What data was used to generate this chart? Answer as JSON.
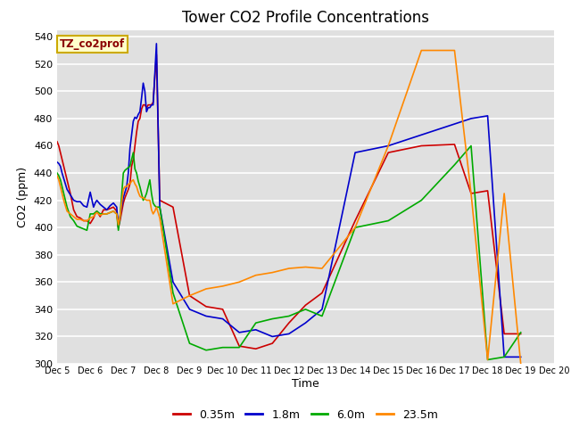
{
  "title": "Tower CO2 Profile Concentrations",
  "xlabel": "Time",
  "ylabel": "CO2 (ppm)",
  "ylim": [
    300,
    545
  ],
  "yticks": [
    300,
    320,
    340,
    360,
    380,
    400,
    420,
    440,
    460,
    480,
    500,
    520,
    540
  ],
  "label_tag": "TZ_co2prof",
  "bg_color": "#e0e0e0",
  "series": {
    "0.35m": {
      "color": "#cc0000",
      "x": [
        5.0,
        5.05,
        5.1,
        5.15,
        5.2,
        5.25,
        5.3,
        5.4,
        5.5,
        5.6,
        5.7,
        5.8,
        5.9,
        6.0,
        6.1,
        6.15,
        6.2,
        6.3,
        6.4,
        6.5,
        6.6,
        6.7,
        6.8,
        6.85,
        6.9,
        7.0,
        7.05,
        7.1,
        7.15,
        7.2,
        7.25,
        7.3,
        7.35,
        7.4,
        7.45,
        7.5,
        7.55,
        7.6,
        7.65,
        7.7,
        7.75,
        7.8,
        7.85,
        7.9,
        7.95,
        8.0,
        8.1,
        8.5,
        9.0,
        9.5,
        10.0,
        10.5,
        11.0,
        11.5,
        12.0,
        12.5,
        13.0,
        14.0,
        15.0,
        16.0,
        17.0,
        17.5,
        18.0,
        18.5,
        19.0
      ],
      "y": [
        463,
        460,
        455,
        450,
        445,
        440,
        435,
        425,
        413,
        408,
        407,
        405,
        405,
        403,
        407,
        410,
        412,
        408,
        413,
        413,
        414,
        415,
        412,
        400,
        405,
        418,
        422,
        425,
        428,
        432,
        445,
        450,
        460,
        470,
        478,
        480,
        487,
        490,
        490,
        488,
        490,
        490,
        490,
        492,
        510,
        527,
        420,
        415,
        350,
        342,
        340,
        313,
        311,
        315,
        330,
        343,
        352,
        405,
        455,
        460,
        461,
        425,
        427,
        322,
        322
      ]
    },
    "1.8m": {
      "color": "#0000cc",
      "x": [
        5.0,
        5.05,
        5.1,
        5.15,
        5.2,
        5.25,
        5.3,
        5.4,
        5.5,
        5.6,
        5.7,
        5.8,
        5.9,
        6.0,
        6.1,
        6.15,
        6.2,
        6.3,
        6.4,
        6.5,
        6.6,
        6.7,
        6.8,
        6.85,
        6.9,
        7.0,
        7.05,
        7.1,
        7.15,
        7.2,
        7.25,
        7.3,
        7.35,
        7.4,
        7.45,
        7.5,
        7.55,
        7.6,
        7.65,
        7.7,
        7.75,
        7.8,
        7.85,
        7.9,
        7.95,
        8.0,
        8.1,
        8.5,
        9.0,
        9.5,
        10.0,
        10.5,
        11.0,
        11.5,
        12.0,
        12.5,
        13.0,
        14.0,
        15.0,
        16.0,
        17.0,
        17.5,
        18.0,
        18.5,
        19.0
      ],
      "y": [
        448,
        447,
        445,
        440,
        436,
        432,
        428,
        424,
        420,
        419,
        419,
        416,
        415,
        426,
        415,
        418,
        420,
        417,
        415,
        413,
        416,
        418,
        415,
        400,
        408,
        422,
        426,
        430,
        440,
        458,
        468,
        478,
        481,
        480,
        483,
        485,
        495,
        506,
        500,
        485,
        488,
        488,
        490,
        490,
        512,
        535,
        415,
        360,
        340,
        335,
        333,
        323,
        325,
        320,
        322,
        330,
        340,
        455,
        460,
        468,
        476,
        480,
        482,
        305,
        305
      ]
    },
    "6.0m": {
      "color": "#00aa00",
      "x": [
        5.0,
        5.05,
        5.1,
        5.15,
        5.2,
        5.25,
        5.3,
        5.4,
        5.5,
        5.6,
        5.7,
        5.8,
        5.9,
        6.0,
        6.1,
        6.15,
        6.2,
        6.3,
        6.4,
        6.5,
        6.6,
        6.7,
        6.8,
        6.85,
        6.9,
        7.0,
        7.05,
        7.1,
        7.15,
        7.2,
        7.25,
        7.3,
        7.35,
        7.4,
        7.45,
        7.5,
        7.55,
        7.6,
        7.65,
        7.7,
        7.75,
        7.8,
        7.85,
        7.9,
        7.95,
        8.0,
        8.1,
        8.5,
        9.0,
        9.5,
        10.0,
        10.5,
        11.0,
        11.5,
        12.0,
        12.5,
        13.0,
        14.0,
        15.0,
        16.0,
        17.0,
        17.5,
        18.0,
        18.5,
        19.0
      ],
      "y": [
        440,
        438,
        435,
        430,
        425,
        420,
        415,
        408,
        405,
        401,
        400,
        399,
        398,
        410,
        410,
        411,
        412,
        410,
        410,
        410,
        411,
        412,
        410,
        398,
        408,
        440,
        442,
        443,
        444,
        445,
        450,
        455,
        443,
        440,
        434,
        430,
        425,
        420,
        422,
        425,
        430,
        435,
        425,
        418,
        416,
        415,
        415,
        352,
        315,
        310,
        312,
        312,
        330,
        333,
        335,
        340,
        335,
        400,
        405,
        420,
        446,
        460,
        303,
        305,
        323
      ]
    },
    "23.5m": {
      "color": "#ff8800",
      "x": [
        5.0,
        5.05,
        5.1,
        5.15,
        5.2,
        5.25,
        5.3,
        5.4,
        5.5,
        5.6,
        5.7,
        5.8,
        5.9,
        6.0,
        6.1,
        6.15,
        6.2,
        6.3,
        6.4,
        6.5,
        6.6,
        6.7,
        6.8,
        6.85,
        6.9,
        7.0,
        7.05,
        7.1,
        7.15,
        7.2,
        7.25,
        7.3,
        7.35,
        7.4,
        7.45,
        7.5,
        7.55,
        7.6,
        7.65,
        7.7,
        7.75,
        7.8,
        7.85,
        7.9,
        7.95,
        8.0,
        8.1,
        8.5,
        9.0,
        9.5,
        10.0,
        10.5,
        11.0,
        11.5,
        12.0,
        12.5,
        13.0,
        14.0,
        15.0,
        16.0,
        17.0,
        17.5,
        18.0,
        18.5,
        19.0
      ],
      "y": [
        438,
        435,
        430,
        425,
        420,
        416,
        412,
        410,
        408,
        406,
        406,
        405,
        405,
        407,
        408,
        410,
        411,
        409,
        410,
        410,
        411,
        412,
        410,
        402,
        408,
        428,
        430,
        430,
        432,
        432,
        434,
        435,
        432,
        430,
        426,
        423,
        422,
        422,
        421,
        420,
        420,
        420,
        413,
        410,
        412,
        415,
        407,
        344,
        350,
        355,
        357,
        360,
        365,
        367,
        370,
        371,
        370,
        400,
        460,
        530,
        530,
        425,
        303,
        425,
        300
      ]
    }
  },
  "xtick_labels": [
    "Dec 5",
    "Dec 6",
    "Dec 7",
    "Dec 8",
    "Dec 9",
    "Dec 10",
    "Dec 11",
    "Dec 12",
    "Dec 13",
    "Dec 14",
    "Dec 15",
    "Dec 16",
    "Dec 17",
    "Dec 18",
    "Dec 19",
    "Dec 20"
  ],
  "xtick_positions": [
    5,
    6,
    7,
    8,
    9,
    10,
    11,
    12,
    13,
    14,
    15,
    16,
    17,
    18,
    19,
    20
  ]
}
